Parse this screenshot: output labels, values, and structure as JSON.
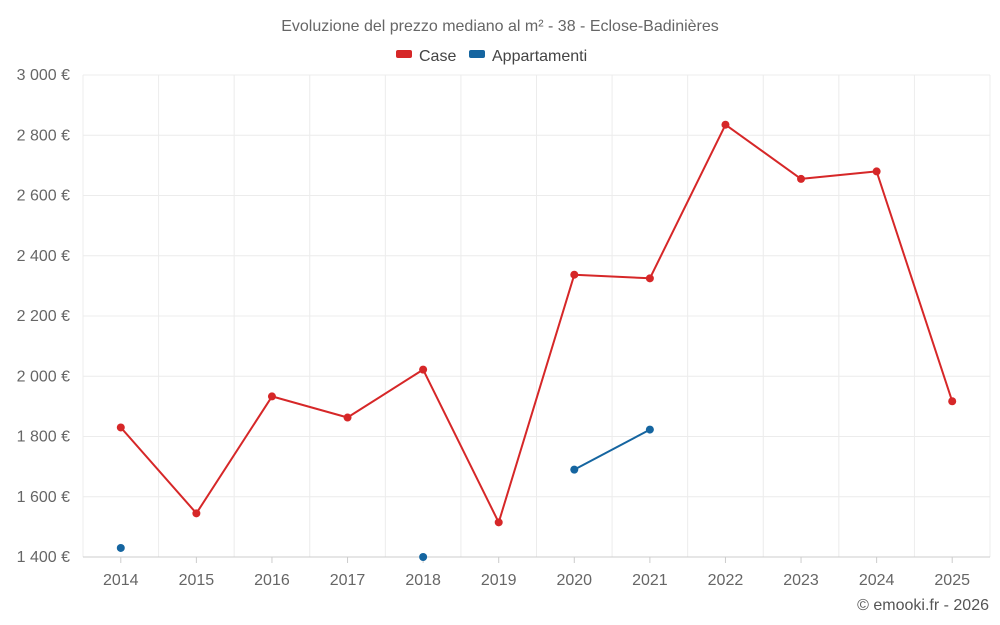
{
  "chart_data": {
    "type": "line",
    "title": "Evoluzione del prezzo mediano al m² - 38 - Eclose-Badinières",
    "xlabel": "",
    "ylabel": "",
    "categories": [
      "2014",
      "2015",
      "2016",
      "2017",
      "2018",
      "2019",
      "2020",
      "2021",
      "2022",
      "2023",
      "2024",
      "2025"
    ],
    "y_ticks": [
      "1 400 €",
      "1 600 €",
      "1 800 €",
      "2 000 €",
      "2 200 €",
      "2 400 €",
      "2 600 €",
      "2 800 €",
      "3 000 €"
    ],
    "ylim": [
      1400,
      3000
    ],
    "grid": true,
    "legend_position": "top-center",
    "series": [
      {
        "name": "Case",
        "color": "#d62728",
        "values": [
          1830,
          1545,
          1933,
          1863,
          2022,
          1515,
          2337,
          2325,
          2835,
          2655,
          2680,
          1917
        ]
      },
      {
        "name": "Appartamenti",
        "color": "#1565a0",
        "values": [
          1430,
          null,
          null,
          null,
          1400,
          null,
          1690,
          1823,
          null,
          null,
          null,
          null
        ]
      }
    ]
  },
  "credit": "© emooki.fr - 2026"
}
